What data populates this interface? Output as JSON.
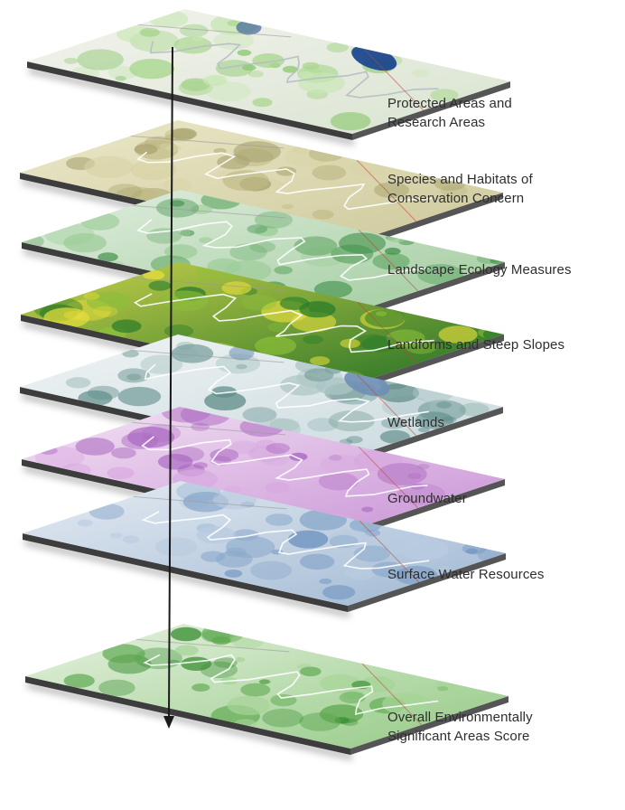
{
  "layers": [
    {
      "id": "protected",
      "label": "Protected Areas and\nResearch Areas",
      "base": "#e9eae2",
      "grad": [
        "#f3f3ee",
        "#d9e4d0"
      ],
      "patch": [
        "#a9d68e",
        "#8bc86f",
        "#c8e6b4"
      ],
      "accent": "#15408e",
      "line": "#b4bcc4"
    },
    {
      "id": "species",
      "label": "Species and Habitats of\nConservation Concern",
      "base": "#ddd9b4",
      "grad": [
        "#ebe8c9",
        "#cdc89a"
      ],
      "patch": [
        "#bfb985",
        "#d8d3a6",
        "#a8a470"
      ],
      "accent": null,
      "line": "#ffffff"
    },
    {
      "id": "landscape",
      "label": "Landscape Ecology Measures",
      "base": "#cfe3cf",
      "grad": [
        "#e2eee0",
        "#9fcb9c"
      ],
      "patch": [
        "#6fae71",
        "#3f8f48",
        "#9ccc98"
      ],
      "accent": null,
      "line": "#ffffff"
    },
    {
      "id": "landforms",
      "label": "Landforms and Steep Slopes",
      "base": "#4e9a3a",
      "grad": [
        "#c9d24a",
        "#1f6e25"
      ],
      "patch": [
        "#e4dc3c",
        "#2c7d2a",
        "#8bbf3a"
      ],
      "accent": null,
      "line": "#ffffff"
    },
    {
      "id": "wetlands",
      "label": "Wetlands",
      "base": "#e3ecef",
      "grad": [
        "#f0f4f5",
        "#c9d9de"
      ],
      "patch": [
        "#7ea3a0",
        "#5e8c88",
        "#aac4c3"
      ],
      "accent": "#6e8fb5",
      "line": "#ffffff"
    },
    {
      "id": "groundwater",
      "label": "Groundwater",
      "base": "#e2c2e8",
      "grad": [
        "#f3e3f4",
        "#c993d6"
      ],
      "patch": [
        "#b57ac6",
        "#d8a9e0",
        "#a865c0"
      ],
      "accent": null,
      "line": "#ffffff"
    },
    {
      "id": "surface",
      "label": "Surface Water Resources",
      "base": "#d3dde9",
      "grad": [
        "#e6ecf3",
        "#9eb7d2"
      ],
      "patch": [
        "#8aa9cb",
        "#b9cbe0",
        "#6f93bf"
      ],
      "accent": null,
      "line": "#ffffff"
    },
    {
      "id": "overall",
      "label": "Overall Environmentally\nSignificant Areas Score",
      "base": "#cfe6c6",
      "grad": [
        "#e7f2e1",
        "#93c984"
      ],
      "patch": [
        "#5da84f",
        "#3c8f35",
        "#a6d497"
      ],
      "accent": null,
      "line": "#ffffff"
    }
  ],
  "colors": {
    "arrow": "#1a1a1a",
    "road": "#c0463a",
    "label": "#2e2e2e"
  }
}
